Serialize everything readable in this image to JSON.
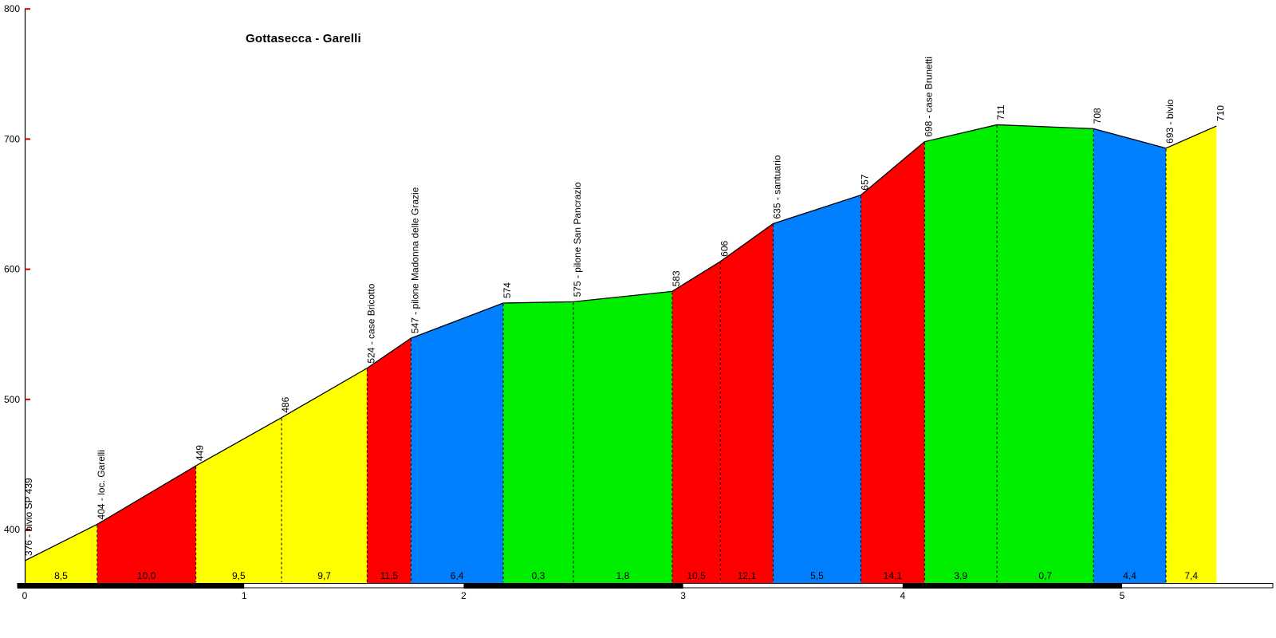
{
  "chart_data": {
    "type": "area",
    "title": "Gottasecca - Garelli",
    "x_unit": "km",
    "y_unit": "m",
    "ylim": [
      400,
      800
    ],
    "xlim": [
      0,
      5.43
    ],
    "grid": false,
    "legend": false,
    "yticks": [
      "400",
      "500",
      "600",
      "700",
      "800"
    ],
    "ytick_values": [
      400,
      500,
      600,
      700,
      800
    ],
    "xticks": [
      "0",
      "1",
      "2",
      "3",
      "4",
      "5"
    ],
    "xtick_values": [
      0,
      1,
      2,
      3,
      4,
      5
    ],
    "waypoints": [
      {
        "km": 0.0,
        "elev": 376,
        "label": "376 - bivio SP 439"
      },
      {
        "km": 0.33,
        "elev": 404,
        "label": "404 - loc. Garelli"
      },
      {
        "km": 0.78,
        "elev": 449,
        "label": "449"
      },
      {
        "km": 1.17,
        "elev": 486,
        "label": "486"
      },
      {
        "km": 1.56,
        "elev": 524,
        "label": "524 - case Bricotto"
      },
      {
        "km": 1.76,
        "elev": 547,
        "label": "547 - pilone Madonna delle Grazie"
      },
      {
        "km": 2.18,
        "elev": 574,
        "label": "574"
      },
      {
        "km": 2.5,
        "elev": 575,
        "label": "575 - pilone San Pancrazio"
      },
      {
        "km": 2.95,
        "elev": 583,
        "label": "583"
      },
      {
        "km": 3.17,
        "elev": 606,
        "label": "606"
      },
      {
        "km": 3.41,
        "elev": 635,
        "label": "635 - santuario"
      },
      {
        "km": 3.81,
        "elev": 657,
        "label": "657"
      },
      {
        "km": 4.1,
        "elev": 698,
        "label": "698 - case Brunetti"
      },
      {
        "km": 4.43,
        "elev": 711,
        "label": "711"
      },
      {
        "km": 4.87,
        "elev": 708,
        "label": "708"
      },
      {
        "km": 5.2,
        "elev": 693,
        "label": "693 - bivio"
      },
      {
        "km": 5.43,
        "elev": 710,
        "label": "710"
      }
    ],
    "segments": [
      {
        "gradient": "8,5",
        "color": "yellow"
      },
      {
        "gradient": "10,0",
        "color": "red"
      },
      {
        "gradient": "9,5",
        "color": "yellow"
      },
      {
        "gradient": "9,7",
        "color": "yellow"
      },
      {
        "gradient": "11,5",
        "color": "red"
      },
      {
        "gradient": "6,4",
        "color": "blue"
      },
      {
        "gradient": "0,3",
        "color": "green"
      },
      {
        "gradient": "1,8",
        "color": "green"
      },
      {
        "gradient": "10,5",
        "color": "red"
      },
      {
        "gradient": "12,1",
        "color": "red"
      },
      {
        "gradient": "5,5",
        "color": "blue"
      },
      {
        "gradient": "14,1",
        "color": "red"
      },
      {
        "gradient": "3,9",
        "color": "green"
      },
      {
        "gradient": "0,7",
        "color": "green"
      },
      {
        "gradient": "4,4",
        "color": "blue"
      },
      {
        "gradient": "7,4",
        "color": "yellow"
      }
    ],
    "palette": {
      "yellow": "#ffff00",
      "red": "#ff0000",
      "green": "#00ee00",
      "blue": "#0080ff"
    },
    "axis_colors": {
      "line": "#000000",
      "tick": "#cc0000",
      "text": "#000000"
    },
    "km_bar_colors": {
      "odd": "#000000",
      "even": "#ffffff"
    }
  }
}
